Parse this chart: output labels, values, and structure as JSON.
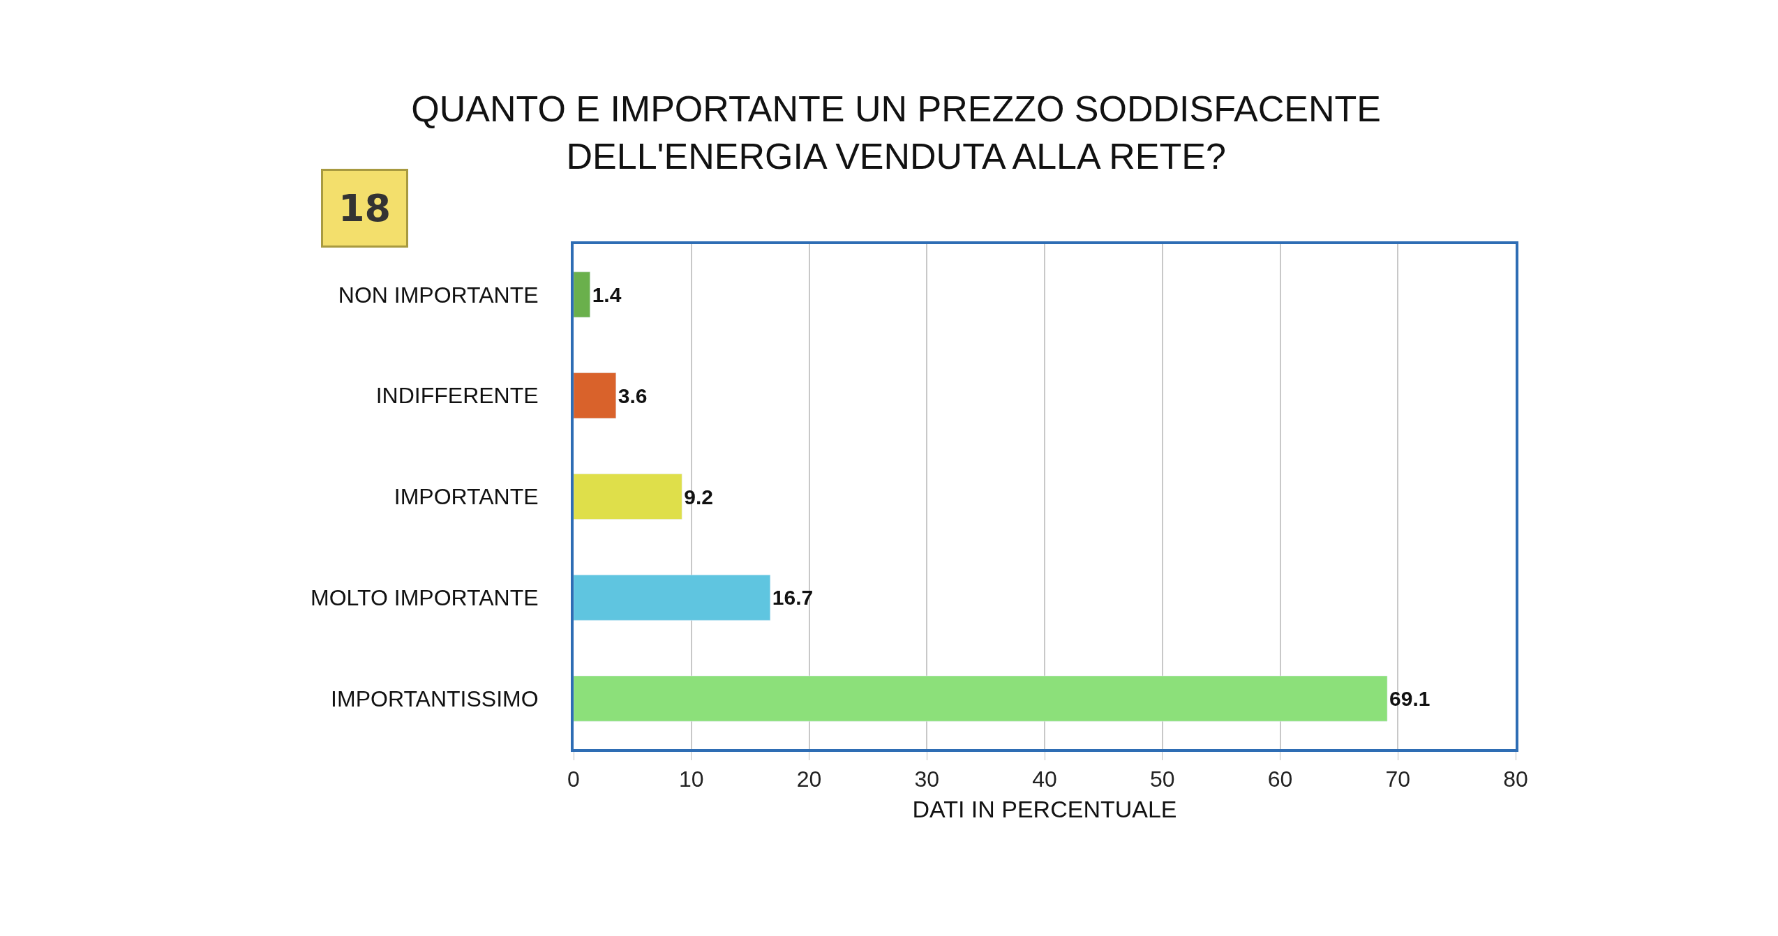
{
  "chart_data": {
    "type": "bar",
    "orientation": "horizontal",
    "title": "QUANTO E IMPORTANTE UN PREZZO SODDISFACENTE\nDELL'ENERGIA VENDUTA ALLA RETE?",
    "xlabel": "DATI IN PERCENTUALE",
    "annotations": [
      "18"
    ],
    "categories": [
      "NON IMPORTANTE",
      "INDIFFERENTE",
      "IMPORTANTE",
      "MOLTO IMPORTANTE",
      "IMPORTANTISSIMO"
    ],
    "values": [
      1.4,
      3.6,
      9.2,
      16.7,
      69.1
    ],
    "colors": [
      "#6ab04c",
      "#d9622b",
      "#dfdf4a",
      "#5fc5e0",
      "#8ce07a"
    ],
    "xlim": [
      0,
      80
    ],
    "xticks": [
      0,
      10,
      20,
      30,
      40,
      50,
      60,
      70,
      80
    ],
    "grid": "x",
    "data_labels": true
  }
}
